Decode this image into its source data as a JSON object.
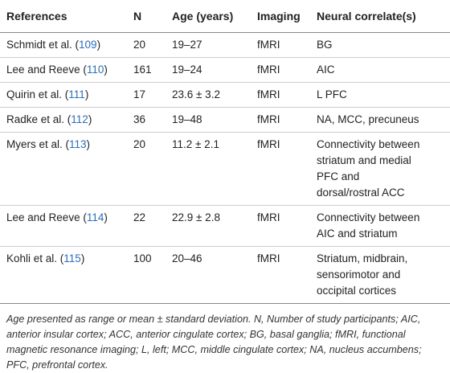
{
  "table": {
    "header": [
      "References",
      "N",
      "Age (years)",
      "Imaging",
      "Neural correlate(s)"
    ],
    "rows": [
      {
        "ref": [
          "Schmidt et al. (",
          "109",
          ")"
        ],
        "n": "20",
        "age": "19–27",
        "imaging": "fMRI",
        "neural": [
          "BG"
        ]
      },
      {
        "ref": [
          "Lee and Reeve (",
          "110",
          ")"
        ],
        "n": "161",
        "age": "19–24",
        "imaging": "fMRI",
        "neural": [
          "AIC"
        ]
      },
      {
        "ref": [
          "Quirin et al. (",
          "111",
          ")"
        ],
        "n": "17",
        "age": "23.6 ± 3.2",
        "imaging": "fMRI",
        "neural": [
          "L PFC"
        ]
      },
      {
        "ref": [
          "Radke et al. (",
          "112",
          ")"
        ],
        "n": "36",
        "age": "19–48",
        "imaging": "fMRI",
        "neural": [
          "NA, MCC, precuneus"
        ]
      },
      {
        "ref": [
          "Myers et al. (",
          "113",
          ")"
        ],
        "n": "20",
        "age": "11.2 ± 2.1",
        "imaging": "fMRI",
        "neural": [
          "Connectivity between",
          "striatum and medial",
          "PFC and",
          "dorsal/rostral ACC"
        ]
      },
      {
        "ref": [
          "Lee and Reeve (",
          "114",
          ")"
        ],
        "n": "22",
        "age": "22.9 ± 2.8",
        "imaging": "fMRI",
        "neural": [
          "Connectivity between",
          "AIC and striatum"
        ]
      },
      {
        "ref": [
          "Kohli et al. (",
          "115",
          ")"
        ],
        "n": "100",
        "age": "20–46",
        "imaging": "fMRI",
        "neural": [
          "Striatum, midbrain,",
          "sensorimotor and",
          "occipital cortices"
        ]
      }
    ],
    "footnote": "Age presented as range or mean ± standard deviation. N, Number of study participants; AIC, anterior insular cortex; ACC, anterior cingulate cortex; BG, basal ganglia; fMRI, functional magnetic resonance imaging; L, left; MCC, middle cingulate cortex; NA, nucleus accumbens; PFC, prefrontal cortex."
  }
}
